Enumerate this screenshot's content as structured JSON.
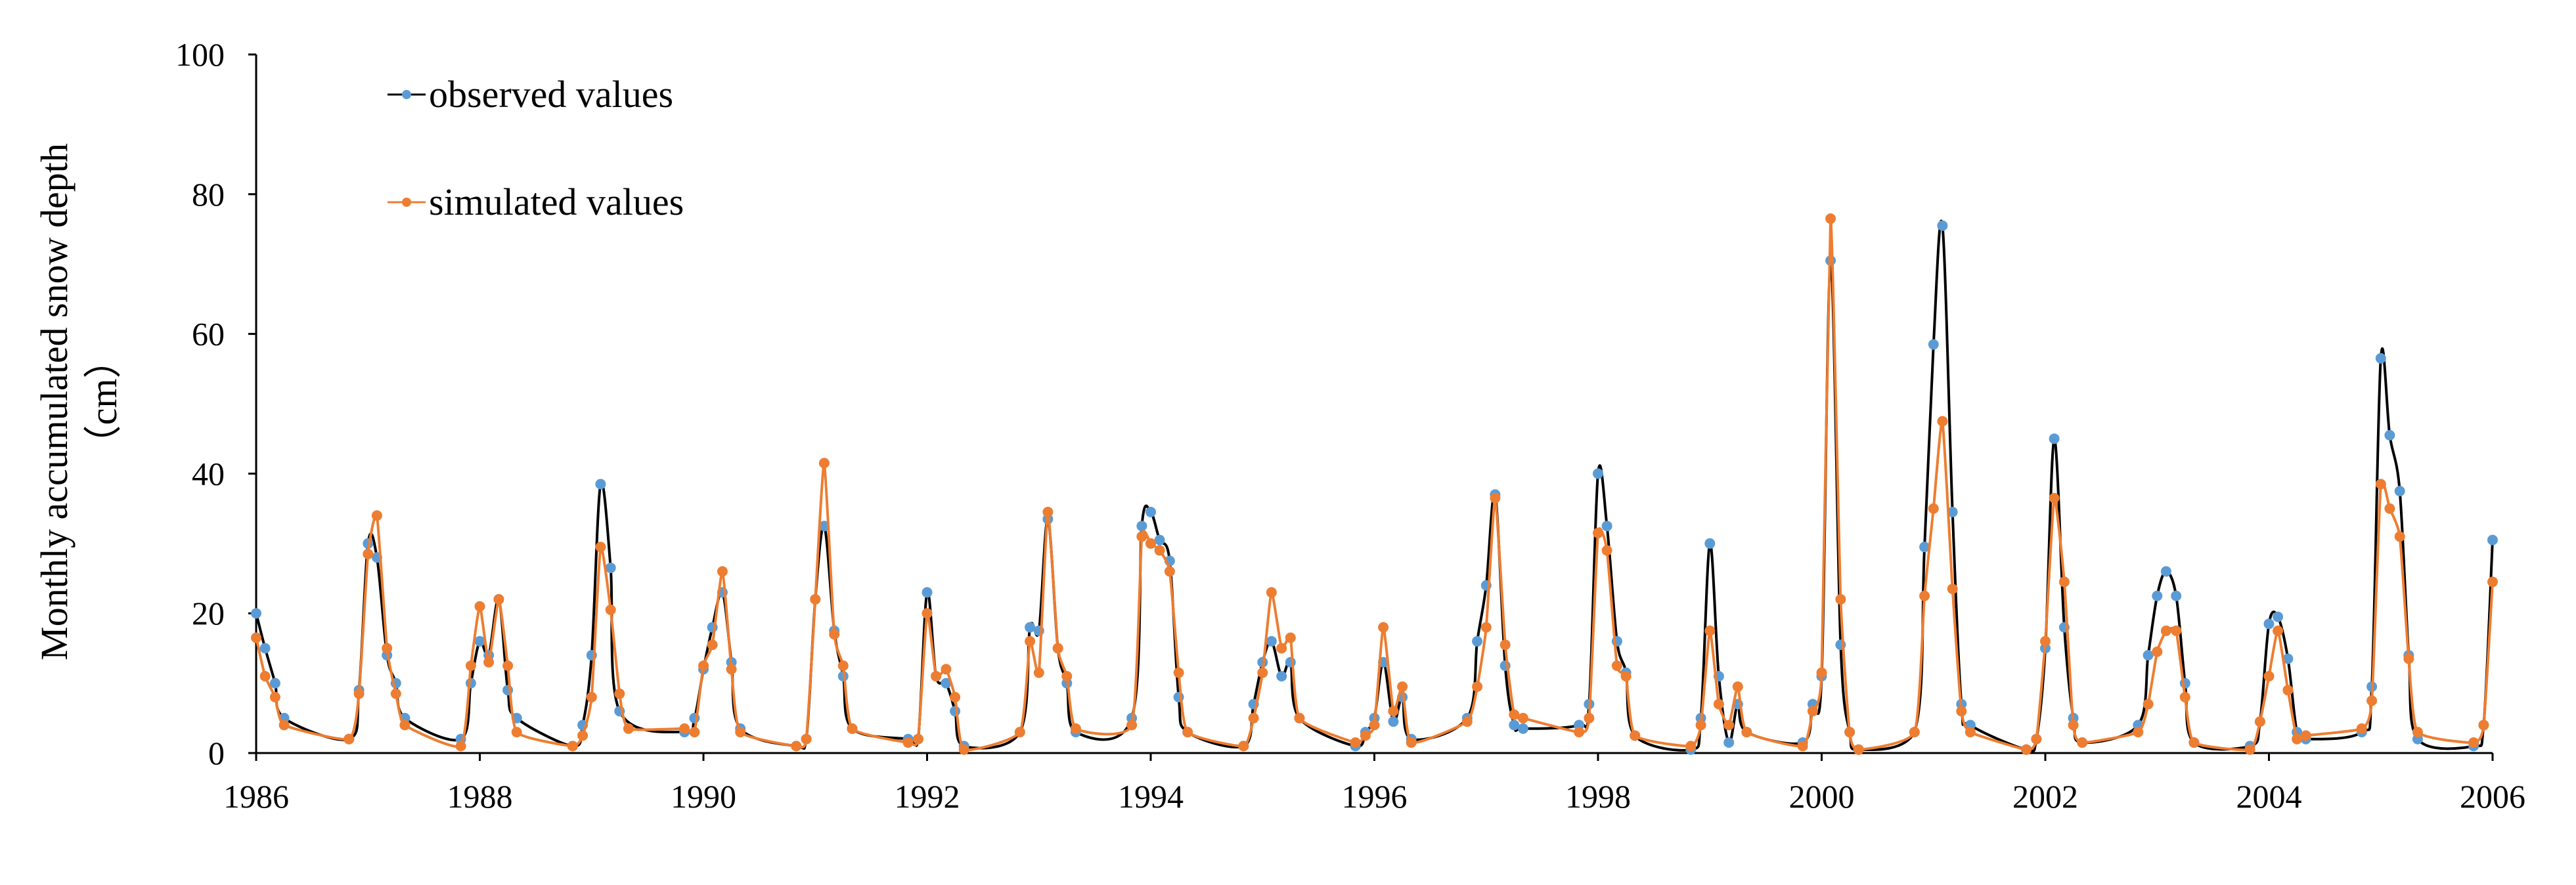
{
  "chart_data": {
    "type": "line",
    "title": "",
    "xlabel": "",
    "ylabel": "Monthly accumulated snow depth",
    "ylabel_unit": "（cm）",
    "xlim": [
      1986,
      2006
    ],
    "ylim": [
      0,
      100
    ],
    "x_ticks": [
      "1986",
      "1988",
      "1990",
      "1992",
      "1994",
      "1996",
      "1998",
      "2000",
      "2002",
      "2004",
      "2006"
    ],
    "y_ticks": [
      "0",
      "20",
      "40",
      "60",
      "80",
      "100"
    ],
    "grid": false,
    "legend_position": "top-left",
    "series": [
      {
        "name": "observed values",
        "color": "#000000",
        "marker_color": "#5B9BD5",
        "points": [
          [
            1986.0,
            20
          ],
          [
            1986.08,
            15
          ],
          [
            1986.17,
            10
          ],
          [
            1986.25,
            5
          ],
          [
            1986.83,
            2
          ],
          [
            1986.92,
            9
          ],
          [
            1987.0,
            30
          ],
          [
            1987.08,
            28
          ],
          [
            1987.17,
            14
          ],
          [
            1987.25,
            10
          ],
          [
            1987.33,
            5
          ],
          [
            1987.83,
            2
          ],
          [
            1987.92,
            10
          ],
          [
            1988.0,
            16
          ],
          [
            1988.08,
            14
          ],
          [
            1988.17,
            22
          ],
          [
            1988.25,
            9
          ],
          [
            1988.33,
            5
          ],
          [
            1988.83,
            1
          ],
          [
            1988.92,
            4
          ],
          [
            1989.0,
            14
          ],
          [
            1989.08,
            38.5
          ],
          [
            1989.17,
            26.5
          ],
          [
            1989.25,
            6
          ],
          [
            1989.83,
            3
          ],
          [
            1989.92,
            5
          ],
          [
            1990.0,
            12
          ],
          [
            1990.08,
            18
          ],
          [
            1990.17,
            23
          ],
          [
            1990.25,
            13
          ],
          [
            1990.33,
            3.5
          ],
          [
            1990.83,
            1
          ],
          [
            1990.92,
            2
          ],
          [
            1991.0,
            22
          ],
          [
            1991.08,
            32.5
          ],
          [
            1991.17,
            17.5
          ],
          [
            1991.25,
            11
          ],
          [
            1991.33,
            3.5
          ],
          [
            1991.83,
            2
          ],
          [
            1991.92,
            2
          ],
          [
            1992.0,
            23
          ],
          [
            1992.08,
            11
          ],
          [
            1992.17,
            10
          ],
          [
            1992.25,
            6
          ],
          [
            1992.33,
            1
          ],
          [
            1992.83,
            3
          ],
          [
            1992.92,
            18
          ],
          [
            1993.0,
            17.5
          ],
          [
            1993.08,
            33.5
          ],
          [
            1993.17,
            15
          ],
          [
            1993.25,
            10
          ],
          [
            1993.33,
            3
          ],
          [
            1993.83,
            5
          ],
          [
            1993.92,
            32.5
          ],
          [
            1994.0,
            34.5
          ],
          [
            1994.08,
            30.5
          ],
          [
            1994.17,
            27.5
          ],
          [
            1994.25,
            8
          ],
          [
            1994.33,
            3
          ],
          [
            1994.83,
            1
          ],
          [
            1994.92,
            7
          ],
          [
            1995.0,
            13
          ],
          [
            1995.08,
            16
          ],
          [
            1995.17,
            11
          ],
          [
            1995.25,
            13
          ],
          [
            1995.33,
            5
          ],
          [
            1995.83,
            1
          ],
          [
            1995.92,
            3
          ],
          [
            1996.0,
            5
          ],
          [
            1996.08,
            13
          ],
          [
            1996.17,
            4.5
          ],
          [
            1996.25,
            8
          ],
          [
            1996.33,
            2
          ],
          [
            1996.83,
            5
          ],
          [
            1996.92,
            16
          ],
          [
            1997.0,
            24
          ],
          [
            1997.08,
            37
          ],
          [
            1997.17,
            12.5
          ],
          [
            1997.25,
            4
          ],
          [
            1997.33,
            3.5
          ],
          [
            1997.83,
            4
          ],
          [
            1997.92,
            7
          ],
          [
            1998.0,
            40
          ],
          [
            1998.08,
            32.5
          ],
          [
            1998.17,
            16
          ],
          [
            1998.25,
            11.5
          ],
          [
            1998.33,
            2.5
          ],
          [
            1998.83,
            0.5
          ],
          [
            1998.92,
            5
          ],
          [
            1999.0,
            30
          ],
          [
            1999.08,
            11
          ],
          [
            1999.17,
            1.5
          ],
          [
            1999.25,
            7
          ],
          [
            1999.33,
            3
          ],
          [
            1999.83,
            1.5
          ],
          [
            1999.92,
            7
          ],
          [
            2000.0,
            11
          ],
          [
            2000.08,
            70.5
          ],
          [
            2000.17,
            15.5
          ],
          [
            2000.25,
            3
          ],
          [
            2000.33,
            0.5
          ],
          [
            2000.83,
            3
          ],
          [
            2000.92,
            29.5
          ],
          [
            2001.0,
            58.5
          ],
          [
            2001.08,
            75.5
          ],
          [
            2001.17,
            34.5
          ],
          [
            2001.25,
            7
          ],
          [
            2001.33,
            4
          ],
          [
            2001.83,
            0.5
          ],
          [
            2001.92,
            2
          ],
          [
            2002.0,
            15
          ],
          [
            2002.08,
            45
          ],
          [
            2002.17,
            18
          ],
          [
            2002.25,
            5
          ],
          [
            2002.33,
            1.5
          ],
          [
            2002.83,
            4
          ],
          [
            2002.92,
            14
          ],
          [
            2003.0,
            22.5
          ],
          [
            2003.08,
            26
          ],
          [
            2003.17,
            22.5
          ],
          [
            2003.25,
            10
          ],
          [
            2003.33,
            1.5
          ],
          [
            2003.83,
            1
          ],
          [
            2003.92,
            4.5
          ],
          [
            2004.0,
            18.5
          ],
          [
            2004.08,
            19.5
          ],
          [
            2004.17,
            13.5
          ],
          [
            2004.25,
            3
          ],
          [
            2004.33,
            2
          ],
          [
            2004.83,
            3
          ],
          [
            2004.92,
            9.5
          ],
          [
            2005.0,
            56.5
          ],
          [
            2005.08,
            45.5
          ],
          [
            2005.17,
            37.5
          ],
          [
            2005.25,
            14
          ],
          [
            2005.33,
            2
          ],
          [
            2005.83,
            1
          ],
          [
            2005.92,
            4
          ],
          [
            2006.0,
            30.5
          ]
        ]
      },
      {
        "name": "simulated values",
        "color": "#ED7D31",
        "marker_color": "#ED7D31",
        "points": [
          [
            1986.0,
            16.5
          ],
          [
            1986.08,
            11
          ],
          [
            1986.17,
            8
          ],
          [
            1986.25,
            4
          ],
          [
            1986.83,
            2
          ],
          [
            1986.92,
            8.5
          ],
          [
            1987.0,
            28.5
          ],
          [
            1987.08,
            34
          ],
          [
            1987.17,
            15
          ],
          [
            1987.25,
            8.5
          ],
          [
            1987.33,
            4
          ],
          [
            1987.83,
            1
          ],
          [
            1987.92,
            12.5
          ],
          [
            1988.0,
            21
          ],
          [
            1988.08,
            13
          ],
          [
            1988.17,
            22
          ],
          [
            1988.25,
            12.5
          ],
          [
            1988.33,
            3
          ],
          [
            1988.83,
            1
          ],
          [
            1988.92,
            2.5
          ],
          [
            1989.0,
            8
          ],
          [
            1989.08,
            29.5
          ],
          [
            1989.17,
            20.5
          ],
          [
            1989.25,
            8.5
          ],
          [
            1989.33,
            3.5
          ],
          [
            1989.83,
            3.5
          ],
          [
            1989.92,
            3
          ],
          [
            1990.0,
            12.5
          ],
          [
            1990.08,
            15.5
          ],
          [
            1990.17,
            26
          ],
          [
            1990.25,
            12
          ],
          [
            1990.33,
            3
          ],
          [
            1990.83,
            1
          ],
          [
            1990.92,
            2
          ],
          [
            1991.0,
            22
          ],
          [
            1991.08,
            41.5
          ],
          [
            1991.17,
            17
          ],
          [
            1991.25,
            12.5
          ],
          [
            1991.33,
            3.5
          ],
          [
            1991.83,
            1.5
          ],
          [
            1991.92,
            2
          ],
          [
            1992.0,
            20
          ],
          [
            1992.08,
            11
          ],
          [
            1992.17,
            12
          ],
          [
            1992.25,
            8
          ],
          [
            1992.33,
            0.5
          ],
          [
            1992.83,
            3
          ],
          [
            1992.92,
            16
          ],
          [
            1993.0,
            11.5
          ],
          [
            1993.08,
            34.5
          ],
          [
            1993.17,
            15
          ],
          [
            1993.25,
            11
          ],
          [
            1993.33,
            3.5
          ],
          [
            1993.83,
            4
          ],
          [
            1993.92,
            31
          ],
          [
            1994.0,
            30
          ],
          [
            1994.08,
            29
          ],
          [
            1994.17,
            26
          ],
          [
            1994.25,
            11.5
          ],
          [
            1994.33,
            3
          ],
          [
            1994.83,
            1
          ],
          [
            1994.92,
            5
          ],
          [
            1995.0,
            11.5
          ],
          [
            1995.08,
            23
          ],
          [
            1995.17,
            15
          ],
          [
            1995.25,
            16.5
          ],
          [
            1995.33,
            5
          ],
          [
            1995.83,
            1.5
          ],
          [
            1995.92,
            2.5
          ],
          [
            1996.0,
            4
          ],
          [
            1996.08,
            18
          ],
          [
            1996.17,
            6
          ],
          [
            1996.25,
            9.5
          ],
          [
            1996.33,
            1.5
          ],
          [
            1996.83,
            4.5
          ],
          [
            1996.92,
            9.5
          ],
          [
            1997.0,
            18
          ],
          [
            1997.08,
            36.5
          ],
          [
            1997.17,
            15.5
          ],
          [
            1997.25,
            5.5
          ],
          [
            1997.33,
            5
          ],
          [
            1997.83,
            3
          ],
          [
            1997.92,
            5
          ],
          [
            1998.0,
            31.5
          ],
          [
            1998.08,
            29
          ],
          [
            1998.17,
            12.5
          ],
          [
            1998.25,
            11
          ],
          [
            1998.33,
            2.5
          ],
          [
            1998.83,
            1
          ],
          [
            1998.92,
            4
          ],
          [
            1999.0,
            17.5
          ],
          [
            1999.08,
            7
          ],
          [
            1999.17,
            4
          ],
          [
            1999.25,
            9.5
          ],
          [
            1999.33,
            3
          ],
          [
            1999.83,
            1
          ],
          [
            1999.92,
            6
          ],
          [
            2000.0,
            11.5
          ],
          [
            2000.08,
            76.5
          ],
          [
            2000.17,
            22
          ],
          [
            2000.25,
            3
          ],
          [
            2000.33,
            0.5
          ],
          [
            2000.83,
            3
          ],
          [
            2000.92,
            22.5
          ],
          [
            2001.0,
            35
          ],
          [
            2001.08,
            47.5
          ],
          [
            2001.17,
            23.5
          ],
          [
            2001.25,
            6
          ],
          [
            2001.33,
            3
          ],
          [
            2001.83,
            0.5
          ],
          [
            2001.92,
            2
          ],
          [
            2002.0,
            16
          ],
          [
            2002.08,
            36.5
          ],
          [
            2002.17,
            24.5
          ],
          [
            2002.25,
            4
          ],
          [
            2002.33,
            1.5
          ],
          [
            2002.83,
            3
          ],
          [
            2002.92,
            7
          ],
          [
            2003.0,
            14.5
          ],
          [
            2003.08,
            17.5
          ],
          [
            2003.17,
            17.5
          ],
          [
            2003.25,
            8
          ],
          [
            2003.33,
            1.5
          ],
          [
            2003.83,
            0.5
          ],
          [
            2003.92,
            4.5
          ],
          [
            2004.0,
            11
          ],
          [
            2004.08,
            17.5
          ],
          [
            2004.17,
            9
          ],
          [
            2004.25,
            2
          ],
          [
            2004.33,
            2.5
          ],
          [
            2004.83,
            3.5
          ],
          [
            2004.92,
            7.5
          ],
          [
            2005.0,
            38.5
          ],
          [
            2005.08,
            35
          ],
          [
            2005.17,
            31
          ],
          [
            2005.25,
            13.5
          ],
          [
            2005.33,
            3
          ],
          [
            2005.83,
            1.5
          ],
          [
            2005.92,
            4
          ],
          [
            2006.0,
            24.5
          ]
        ]
      }
    ]
  }
}
